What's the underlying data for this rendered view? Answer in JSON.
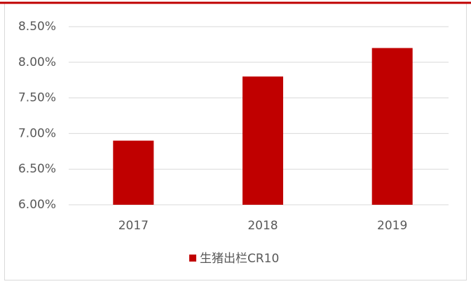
{
  "chart_data": {
    "type": "bar",
    "categories": [
      "2017",
      "2018",
      "2019"
    ],
    "series": [
      {
        "name": "生猪出栏CR10",
        "color": "#c00000",
        "values": [
          6.9,
          7.8,
          8.2
        ]
      }
    ],
    "ylim": [
      6,
      8.5
    ],
    "yticks": [
      {
        "value": 6,
        "label": "6.00%"
      },
      {
        "value": 6.5,
        "label": "6.50%"
      },
      {
        "value": 7,
        "label": "7.00%"
      },
      {
        "value": 7.5,
        "label": "7.50%"
      },
      {
        "value": 8,
        "label": "8.00%"
      },
      {
        "value": 8.5,
        "label": "8.50%"
      }
    ],
    "grid": true,
    "legend": "bottom"
  }
}
